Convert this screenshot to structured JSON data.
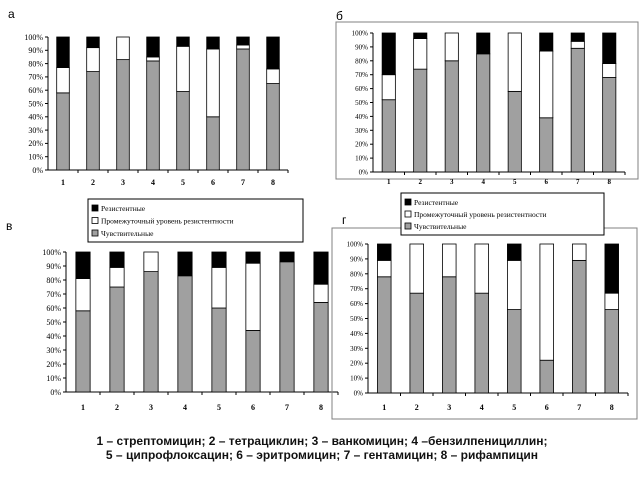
{
  "chart_data": [
    {
      "type": "bar",
      "stacked": true,
      "percent": true,
      "panel_label": "а",
      "categories": [
        "1",
        "2",
        "3",
        "4",
        "5",
        "6",
        "7",
        "8"
      ],
      "y_ticks": [
        "0%",
        "10%",
        "20%",
        "30%",
        "40%",
        "50%",
        "60%",
        "70%",
        "80%",
        "90%",
        "100%"
      ],
      "ylim": [
        0,
        100
      ],
      "series": [
        {
          "name": "Чувствительные",
          "values": [
            58,
            74,
            83,
            82,
            59,
            40,
            91,
            65
          ]
        },
        {
          "name": "Промежуточный уровень резистентности",
          "values": [
            19,
            18,
            17,
            3,
            34,
            51,
            3,
            11
          ]
        },
        {
          "name": "Резистентные",
          "values": [
            23,
            8,
            0,
            15,
            7,
            9,
            6,
            24
          ]
        }
      ]
    },
    {
      "type": "bar",
      "stacked": true,
      "percent": true,
      "panel_label": "б",
      "categories": [
        "1",
        "2",
        "3",
        "4",
        "5",
        "6",
        "7",
        "8"
      ],
      "y_ticks": [
        "0%",
        "10%",
        "20%",
        "30%",
        "40%",
        "50%",
        "60%",
        "70%",
        "80%",
        "90%",
        "100%"
      ],
      "ylim": [
        0,
        100
      ],
      "series": [
        {
          "name": "Чувствительные",
          "values": [
            52,
            74,
            80,
            85,
            58,
            39,
            89,
            68
          ]
        },
        {
          "name": "Промежуточный уровень резистентности",
          "values": [
            18,
            22,
            20,
            0,
            42,
            48,
            5,
            10
          ]
        },
        {
          "name": "Резистентные",
          "values": [
            30,
            4,
            0,
            15,
            0,
            13,
            6,
            22
          ]
        }
      ]
    },
    {
      "type": "bar",
      "stacked": true,
      "percent": true,
      "panel_label": "в",
      "categories": [
        "1",
        "2",
        "3",
        "4",
        "5",
        "6",
        "7",
        "8"
      ],
      "y_ticks": [
        "0%",
        "10%",
        "20%",
        "30%",
        "40%",
        "50%",
        "60%",
        "70%",
        "80%",
        "90%",
        "100%"
      ],
      "ylim": [
        0,
        100
      ],
      "series": [
        {
          "name": "Чувствительные",
          "values": [
            58,
            75,
            86,
            83,
            60,
            44,
            93,
            64
          ]
        },
        {
          "name": "Промежуточный уровень резистентности",
          "values": [
            23,
            14,
            14,
            0,
            29,
            48,
            0,
            13
          ]
        },
        {
          "name": "Резистентные",
          "values": [
            19,
            11,
            0,
            17,
            11,
            8,
            7,
            23
          ]
        }
      ]
    },
    {
      "type": "bar",
      "stacked": true,
      "percent": true,
      "panel_label": "г",
      "categories": [
        "1",
        "2",
        "3",
        "4",
        "5",
        "6",
        "7",
        "8"
      ],
      "y_ticks": [
        "0%",
        "10%",
        "20%",
        "30%",
        "40%",
        "50%",
        "60%",
        "70%",
        "80%",
        "90%",
        "100%"
      ],
      "ylim": [
        0,
        100
      ],
      "series": [
        {
          "name": "Чувствительные",
          "values": [
            78,
            67,
            78,
            67,
            56,
            22,
            89,
            56
          ]
        },
        {
          "name": "Промежуточный уровень резистентности",
          "values": [
            11,
            33,
            22,
            33,
            33,
            78,
            11,
            11
          ]
        },
        {
          "name": "Резистентные",
          "values": [
            11,
            0,
            0,
            0,
            11,
            0,
            0,
            33
          ]
        }
      ]
    }
  ],
  "legend": {
    "items": [
      "Резистентные",
      "Промежуточный уровень резистентности",
      "Чувствительные"
    ]
  },
  "colors": {
    "resistant": "#000000",
    "intermediate": "#ffffff",
    "sensitive": "#a0a0a0",
    "frame": "#808080"
  },
  "caption": {
    "line1": "1 – стрептомицин; 2 – тетрациклин; 3 – ванкомицин; 4 –бензилпенициллин;",
    "line2": "5 – ципрофлоксацин; 6 – эритромицин; 7 – гентамицин; 8 – рифампицин"
  }
}
